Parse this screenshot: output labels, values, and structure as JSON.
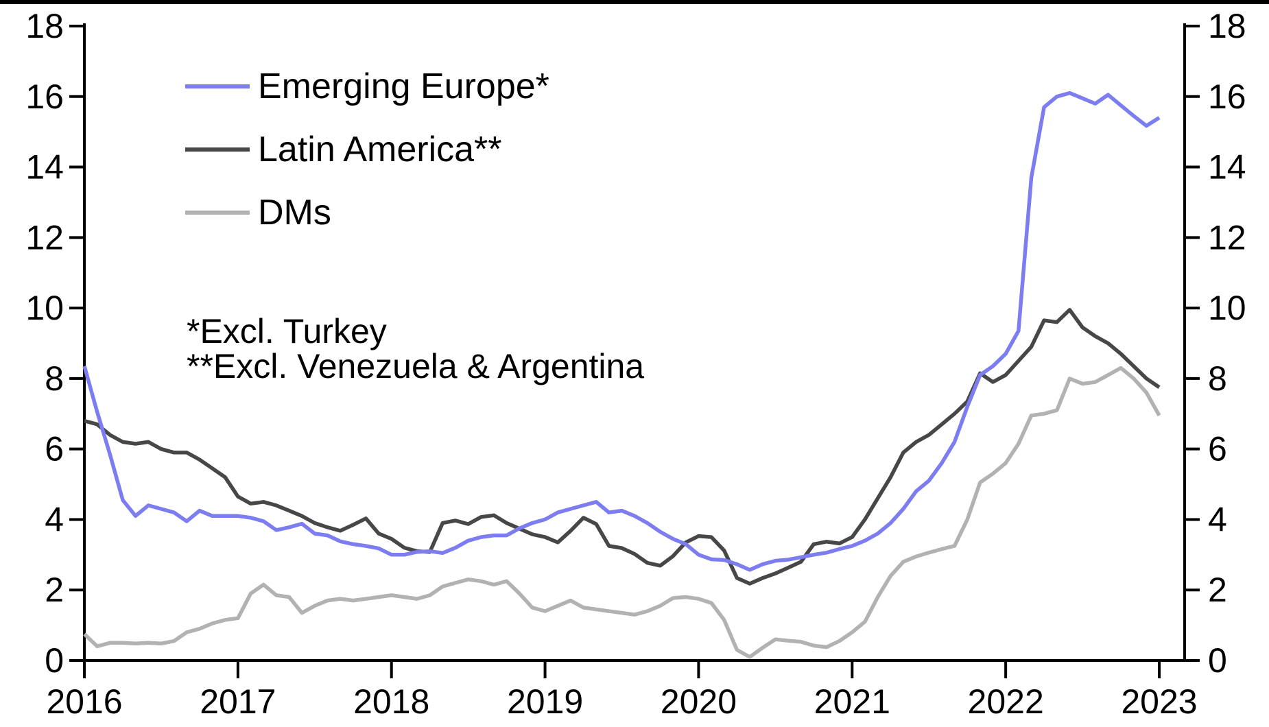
{
  "chart_data": {
    "type": "line",
    "title": "",
    "xlabel": "",
    "ylabel": "",
    "x_start_year": 2016,
    "points_per_month": 1,
    "x_ticks": [
      "2016",
      "2017",
      "2018",
      "2019",
      "2020",
      "2021",
      "2022",
      "2023"
    ],
    "y_ticks": [
      0,
      2,
      4,
      6,
      8,
      10,
      12,
      14,
      16,
      18
    ],
    "ylim": [
      0,
      18
    ],
    "grid": false,
    "legend_position": "top-left",
    "axis_color": "#000000",
    "series": [
      {
        "name": "Emerging Europe*",
        "color": "#7d7df2",
        "values": [
          8.35,
          7.05,
          5.85,
          4.55,
          4.1,
          4.4,
          4.3,
          4.2,
          3.95,
          4.25,
          4.1,
          4.1,
          4.1,
          4.05,
          3.95,
          3.7,
          3.78,
          3.88,
          3.6,
          3.55,
          3.38,
          3.3,
          3.25,
          3.18,
          3.0,
          3.0,
          3.08,
          3.1,
          3.05,
          3.2,
          3.4,
          3.5,
          3.55,
          3.55,
          3.75,
          3.9,
          4.0,
          4.2,
          4.3,
          4.4,
          4.5,
          4.2,
          4.25,
          4.1,
          3.9,
          3.65,
          3.45,
          3.3,
          3.0,
          2.87,
          2.85,
          2.73,
          2.57,
          2.73,
          2.83,
          2.86,
          2.93,
          3.0,
          3.06,
          3.16,
          3.25,
          3.4,
          3.6,
          3.9,
          4.3,
          4.8,
          5.1,
          5.6,
          6.2,
          7.2,
          8.1,
          8.35,
          8.7,
          9.35,
          13.7,
          15.7,
          16.0,
          16.1,
          15.95,
          15.8,
          16.05,
          15.75,
          15.45,
          15.17,
          15.4
        ]
      },
      {
        "name": "Latin America**",
        "color": "#474747",
        "values": [
          6.8,
          6.7,
          6.4,
          6.2,
          6.15,
          6.2,
          6.0,
          5.9,
          5.9,
          5.7,
          5.45,
          5.2,
          4.65,
          4.45,
          4.5,
          4.4,
          4.25,
          4.1,
          3.9,
          3.78,
          3.68,
          3.85,
          4.03,
          3.6,
          3.45,
          3.2,
          3.1,
          3.08,
          3.9,
          3.97,
          3.87,
          4.07,
          4.12,
          3.9,
          3.74,
          3.58,
          3.5,
          3.35,
          3.68,
          4.05,
          3.87,
          3.25,
          3.19,
          3.02,
          2.77,
          2.69,
          2.96,
          3.35,
          3.53,
          3.5,
          3.12,
          2.34,
          2.18,
          2.34,
          2.47,
          2.63,
          2.8,
          3.3,
          3.37,
          3.32,
          3.5,
          4.0,
          4.6,
          5.2,
          5.9,
          6.2,
          6.4,
          6.7,
          7.0,
          7.35,
          8.15,
          7.9,
          8.1,
          8.5,
          8.9,
          9.65,
          9.6,
          9.95,
          9.45,
          9.2,
          9.0,
          8.7,
          8.35,
          8.0,
          7.75
        ]
      },
      {
        "name": "DMs",
        "color": "#b2b2b2",
        "values": [
          0.75,
          0.4,
          0.5,
          0.5,
          0.48,
          0.5,
          0.48,
          0.55,
          0.8,
          0.9,
          1.05,
          1.15,
          1.2,
          1.9,
          2.15,
          1.85,
          1.8,
          1.35,
          1.55,
          1.7,
          1.75,
          1.7,
          1.75,
          1.8,
          1.85,
          1.8,
          1.75,
          1.85,
          2.1,
          2.2,
          2.3,
          2.25,
          2.15,
          2.25,
          1.9,
          1.5,
          1.4,
          1.55,
          1.7,
          1.5,
          1.45,
          1.4,
          1.35,
          1.3,
          1.4,
          1.55,
          1.77,
          1.8,
          1.75,
          1.63,
          1.15,
          0.3,
          0.1,
          0.36,
          0.6,
          0.56,
          0.53,
          0.42,
          0.38,
          0.55,
          0.8,
          1.1,
          1.8,
          2.4,
          2.8,
          2.95,
          3.06,
          3.16,
          3.25,
          4.0,
          5.05,
          5.3,
          5.6,
          6.15,
          6.95,
          7.0,
          7.1,
          8.0,
          7.85,
          7.9,
          8.1,
          8.3,
          8.0,
          7.6,
          6.95
        ]
      }
    ],
    "annotations": [
      "*Excl. Turkey",
      "**Excl. Venezuela & Argentina"
    ]
  }
}
